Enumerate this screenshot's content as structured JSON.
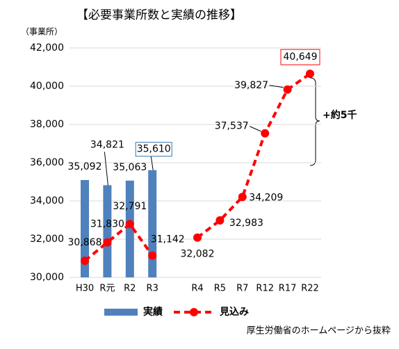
{
  "chart_data": {
    "type": "bar_line",
    "title": "【必要事業所数と実績の推移】",
    "y_axis_label": "（事業所）",
    "annotation": "+約5千",
    "source": "厚生労働省のホームページから抜粋",
    "categories": [
      "H30",
      "R元",
      "R2",
      "R3",
      null,
      "R4",
      "R5",
      "R7",
      "R12",
      "R17",
      "R22"
    ],
    "series": [
      {
        "name": "実績",
        "type": "bar",
        "color": "#4f81bd",
        "values": [
          35092,
          34821,
          35063,
          35610,
          null,
          null,
          null,
          null,
          null,
          null,
          null
        ],
        "value_labels": [
          "35,092",
          "34,821",
          "35,063",
          "35,610",
          null,
          null,
          null,
          null,
          null,
          null,
          null
        ]
      },
      {
        "name": "見込み",
        "type": "line",
        "color": "#ff0000",
        "values": [
          30868,
          31830,
          32791,
          31142,
          null,
          32082,
          32983,
          34209,
          37537,
          39827,
          40649
        ],
        "value_labels": [
          "30,868",
          "31,830",
          "32,791",
          "31,142",
          null,
          "32,082",
          "32,983",
          "34,209",
          "37,537",
          "39,827",
          "40,649"
        ]
      }
    ],
    "ylim": [
      30000,
      42000
    ],
    "yticks": [
      {
        "value": 30000,
        "label": "30,000"
      },
      {
        "value": 32000,
        "label": "32,000"
      },
      {
        "value": 34000,
        "label": "34,000"
      },
      {
        "value": 36000,
        "label": "36,000"
      },
      {
        "value": 38000,
        "label": "38,000"
      },
      {
        "value": 40000,
        "label": "40,000"
      },
      {
        "value": 42000,
        "label": "42,000"
      }
    ],
    "grid": true
  }
}
